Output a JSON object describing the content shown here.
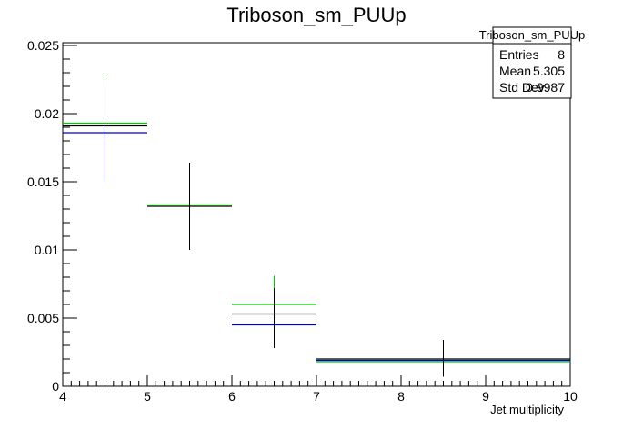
{
  "chart_data": {
    "type": "scatter",
    "title": "Triboson_sm_PUUp",
    "xlabel": "Jet multiplicity",
    "ylabel": "",
    "xlim": [
      4,
      10
    ],
    "ylim": [
      0,
      0.0252
    ],
    "x_ticks": [
      "4",
      "5",
      "6",
      "7",
      "8",
      "9",
      "10"
    ],
    "y_ticks": [
      "0",
      "0.005",
      "0.01",
      "0.015",
      "0.02",
      "0.025"
    ],
    "y_tick_values": [
      0,
      0.005,
      0.01,
      0.015,
      0.02,
      0.025
    ],
    "grid": false,
    "stats_box": {
      "title": "Triboson_sm_PUUp",
      "rows": [
        {
          "label": "Entries",
          "value": "8"
        },
        {
          "label": "Mean",
          "value": "5.305"
        },
        {
          "label": "Std Dev",
          "value": "0.9987"
        }
      ]
    },
    "series": [
      {
        "color": "#00cc00",
        "bins": [
          {
            "x": [
              4,
              5
            ],
            "y": 0.0193
          },
          {
            "x": [
              5,
              6
            ],
            "y": 0.0133
          },
          {
            "x": [
              6,
              7
            ],
            "y": 0.006
          },
          {
            "x": [
              7,
              10
            ],
            "y": 0.0018
          }
        ],
        "errors": [
          {
            "x": 4.5,
            "y_low": 0.0152,
            "y_high": 0.0228
          },
          {
            "x": 6.5,
            "y_low": 0.0058,
            "y_high": 0.0081
          }
        ]
      },
      {
        "color": "#000000",
        "bins": [
          {
            "x": [
              4,
              5
            ],
            "y": 0.0191
          },
          {
            "x": [
              5,
              6
            ],
            "y": 0.0132
          },
          {
            "x": [
              6,
              7
            ],
            "y": 0.0053
          },
          {
            "x": [
              7,
              10
            ],
            "y": 0.002
          }
        ],
        "errors": [
          {
            "x": 4.5,
            "y_low": 0.0153,
            "y_high": 0.0226
          },
          {
            "x": 5.5,
            "y_low": 0.01,
            "y_high": 0.0164
          },
          {
            "x": 6.5,
            "y_low": 0.0028,
            "y_high": 0.0072
          },
          {
            "x": 8.5,
            "y_low": 0.0007,
            "y_high": 0.0034
          }
        ]
      },
      {
        "color": "#0000cc",
        "bins": [
          {
            "x": [
              4,
              5
            ],
            "y": 0.0186
          },
          {
            "x": [
              6,
              7
            ],
            "y": 0.0045
          },
          {
            "x": [
              7,
              10
            ],
            "y": 0.0019
          }
        ],
        "errors": [
          {
            "x": 4.5,
            "y_low": 0.015,
            "y_high": 0.019
          }
        ]
      }
    ]
  }
}
